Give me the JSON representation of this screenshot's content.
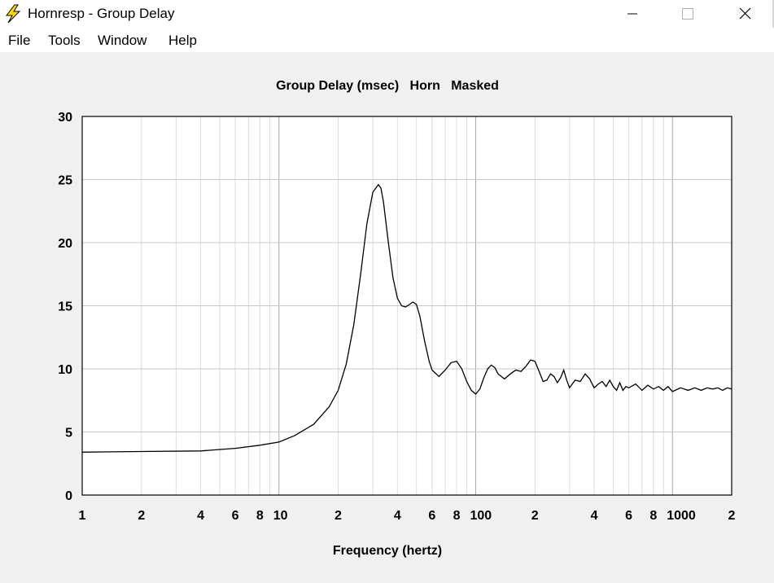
{
  "window": {
    "title": "Hornresp - Group Delay",
    "icon": "lightning-bolt-icon",
    "controls": [
      "minimize-icon",
      "maximize-icon",
      "close-icon"
    ]
  },
  "menu": {
    "items": [
      "File",
      "Tools",
      "Window",
      "Help"
    ]
  },
  "colors": {
    "plot_background": "#ffffff",
    "curve": "#000000",
    "grid": "#c8c8c8",
    "window_background": "#f0f0f0",
    "icon_yellow": "#ffd800"
  },
  "chart_data": {
    "type": "line",
    "title": "Group Delay (msec)   Horn   Masked",
    "xlabel": "Frequency (hertz)",
    "ylabel": "",
    "x_scale": "log",
    "xlim": [
      1,
      2000
    ],
    "ylim": [
      0,
      30
    ],
    "grid": true,
    "y_ticks": [
      "0",
      "5",
      "10",
      "15",
      "20",
      "25",
      "30"
    ],
    "x_ticks": [
      {
        "value": 1,
        "label": "1"
      },
      {
        "value": 2,
        "label": "2"
      },
      {
        "value": 4,
        "label": "4"
      },
      {
        "value": 6,
        "label": "6"
      },
      {
        "value": 8,
        "label": "8"
      },
      {
        "value": 10,
        "label": "10"
      },
      {
        "value": 20,
        "label": "2"
      },
      {
        "value": 40,
        "label": "4"
      },
      {
        "value": 60,
        "label": "6"
      },
      {
        "value": 80,
        "label": "8"
      },
      {
        "value": 100,
        "label": "100"
      },
      {
        "value": 200,
        "label": "2"
      },
      {
        "value": 400,
        "label": "4"
      },
      {
        "value": 600,
        "label": "6"
      },
      {
        "value": 800,
        "label": "8"
      },
      {
        "value": 1000,
        "label": "1000"
      },
      {
        "value": 2000,
        "label": "2"
      }
    ],
    "series": [
      {
        "x": [
          1,
          2,
          4,
          6,
          8,
          10,
          12,
          15,
          18,
          20,
          22,
          24,
          26,
          28,
          30,
          32,
          33,
          34,
          36,
          38,
          40,
          42,
          44,
          46,
          48,
          50,
          52,
          55,
          58,
          60,
          65,
          70,
          75,
          80,
          85,
          90,
          95,
          100,
          105,
          110,
          115,
          120,
          125,
          130,
          140,
          150,
          160,
          170,
          180,
          190,
          200,
          210,
          220,
          230,
          240,
          250,
          260,
          270,
          280,
          290,
          300,
          320,
          340,
          360,
          380,
          400,
          420,
          440,
          460,
          480,
          500,
          520,
          540,
          560,
          580,
          600,
          650,
          700,
          750,
          800,
          850,
          900,
          950,
          1000,
          1100,
          1200,
          1300,
          1400,
          1500,
          1600,
          1700,
          1800,
          1900,
          2000
        ],
        "y": [
          3.4,
          3.45,
          3.5,
          3.7,
          3.95,
          4.2,
          4.7,
          5.6,
          7.0,
          8.3,
          10.4,
          13.5,
          17.5,
          21.5,
          24.0,
          24.6,
          24.3,
          23.2,
          20.0,
          17.2,
          15.6,
          15.0,
          14.9,
          15.1,
          15.3,
          15.1,
          14.2,
          12.2,
          10.6,
          9.9,
          9.4,
          9.9,
          10.5,
          10.6,
          10.0,
          9.0,
          8.3,
          8.0,
          8.4,
          9.3,
          10.0,
          10.3,
          10.1,
          9.6,
          9.2,
          9.6,
          9.9,
          9.8,
          10.2,
          10.7,
          10.6,
          9.8,
          9.0,
          9.1,
          9.6,
          9.4,
          8.9,
          9.3,
          9.9,
          9.1,
          8.5,
          9.1,
          9.0,
          9.6,
          9.2,
          8.5,
          8.8,
          9.0,
          8.6,
          9.1,
          8.6,
          8.3,
          8.9,
          8.3,
          8.6,
          8.5,
          8.8,
          8.3,
          8.7,
          8.4,
          8.6,
          8.3,
          8.6,
          8.2,
          8.5,
          8.3,
          8.5,
          8.3,
          8.5,
          8.4,
          8.5,
          8.3,
          8.5,
          8.4
        ]
      }
    ]
  }
}
